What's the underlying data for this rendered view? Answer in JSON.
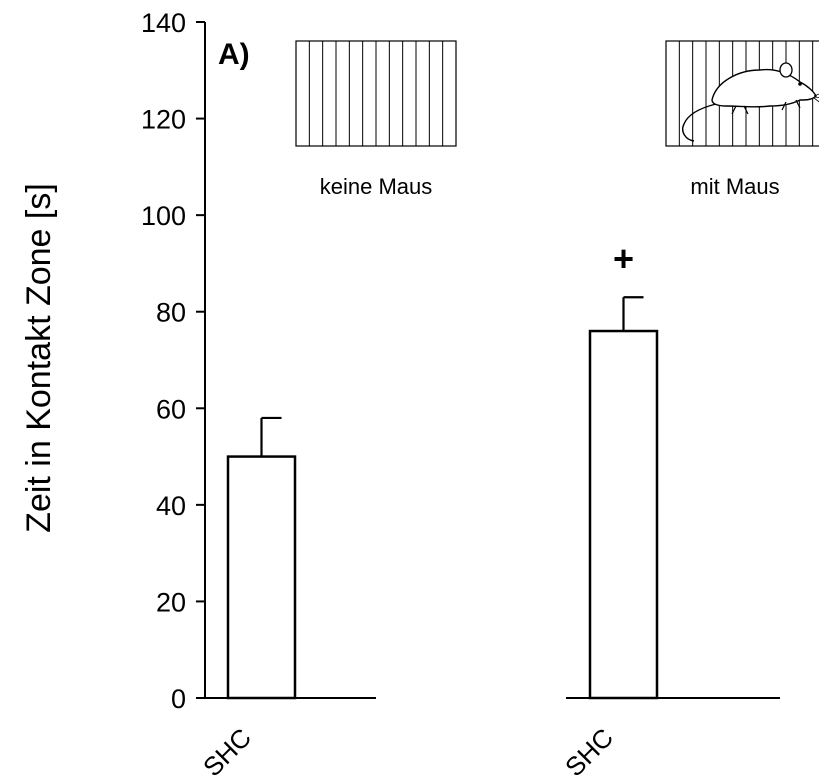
{
  "chart_data": {
    "type": "bar",
    "panel_label": "A)",
    "ylabel": "Zeit in Kontakt Zone [s]",
    "ylim": [
      0,
      140
    ],
    "yticks": [
      0,
      20,
      40,
      60,
      80,
      100,
      120,
      140
    ],
    "groups": [
      {
        "condition": "keine Maus",
        "category": "SHC",
        "value": 50,
        "error": 8,
        "annotation": ""
      },
      {
        "condition": "mit Maus",
        "category": "SHC",
        "value": 76,
        "error": 7,
        "annotation": "+"
      }
    ],
    "grid": false,
    "legend": "none",
    "bar_fill": "#ffffff",
    "bar_stroke": "#000000"
  },
  "icons": {
    "empty_cage": "empty-cage-icon",
    "mouse_cage": "mouse-in-cage-icon"
  }
}
